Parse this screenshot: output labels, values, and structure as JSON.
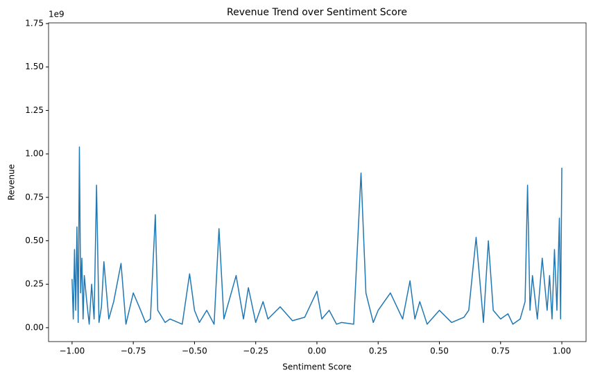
{
  "chart_data": {
    "type": "line",
    "title": "Revenue Trend over Sentiment Score",
    "x_label": "Sentiment Score",
    "y_label": "Revenue",
    "y_offset_label": "1e9",
    "xlim": [
      -1.096,
      1.099
    ],
    "ylim": [
      -0.08,
      1.754
    ],
    "xticks": [
      {
        "value": -1,
        "label": "−1.00"
      },
      {
        "value": -0.75,
        "label": "−0.75"
      },
      {
        "value": -0.5,
        "label": "−0.50"
      },
      {
        "value": -0.25,
        "label": "−0.25"
      },
      {
        "value": 0,
        "label": "0.00"
      },
      {
        "value": 0.25,
        "label": "0.25"
      },
      {
        "value": 0.5,
        "label": "0.50"
      },
      {
        "value": 0.75,
        "label": "0.75"
      },
      {
        "value": 1,
        "label": "1.00"
      }
    ],
    "yticks": [
      {
        "value": 0,
        "label": "0.00"
      },
      0.25,
      {
        "value": 0.5,
        "label": "0.50"
      },
      0.75,
      {
        "value": 1,
        "label": "1.00"
      },
      1.25,
      {
        "value": 1.5,
        "label": "1.50"
      },
      1.75
    ],
    "x": [
      -1.0,
      -0.995,
      -0.99,
      -0.985,
      -0.98,
      -0.975,
      -0.97,
      -0.965,
      -0.96,
      -0.955,
      -0.95,
      -0.94,
      -0.93,
      -0.92,
      -0.91,
      -0.9,
      -0.89,
      -0.88,
      -0.87,
      -0.85,
      -0.83,
      -0.8,
      -0.78,
      -0.75,
      -0.72,
      -0.7,
      -0.68,
      -0.66,
      -0.65,
      -0.62,
      -0.6,
      -0.55,
      -0.52,
      -0.5,
      -0.48,
      -0.45,
      -0.42,
      -0.4,
      -0.38,
      -0.35,
      -0.33,
      -0.3,
      -0.28,
      -0.25,
      -0.22,
      -0.2,
      -0.15,
      -0.1,
      -0.05,
      0.0,
      0.02,
      0.05,
      0.08,
      0.1,
      0.15,
      0.18,
      0.2,
      0.23,
      0.25,
      0.3,
      0.35,
      0.38,
      0.4,
      0.42,
      0.45,
      0.5,
      0.55,
      0.6,
      0.62,
      0.65,
      0.68,
      0.7,
      0.72,
      0.75,
      0.78,
      0.8,
      0.83,
      0.85,
      0.86,
      0.87,
      0.88,
      0.9,
      0.92,
      0.94,
      0.95,
      0.96,
      0.97,
      0.98,
      0.99,
      0.995,
      1.0
    ],
    "series": [
      {
        "color": "#1f77b4",
        "values": [
          0.28,
          0.05,
          0.45,
          0.1,
          0.58,
          0.03,
          1.04,
          0.2,
          0.4,
          0.05,
          0.3,
          0.15,
          0.02,
          0.25,
          0.05,
          0.82,
          0.03,
          0.12,
          0.38,
          0.05,
          0.15,
          0.37,
          0.02,
          0.2,
          0.1,
          0.03,
          0.05,
          0.65,
          0.1,
          0.03,
          0.05,
          0.02,
          0.31,
          0.1,
          0.03,
          0.1,
          0.02,
          0.57,
          0.05,
          0.2,
          0.3,
          0.05,
          0.23,
          0.03,
          0.15,
          0.05,
          0.12,
          0.04,
          0.06,
          0.21,
          0.05,
          0.1,
          0.02,
          0.03,
          0.02,
          0.89,
          0.2,
          0.03,
          0.1,
          0.2,
          0.05,
          0.27,
          0.05,
          0.15,
          0.02,
          0.1,
          0.03,
          0.06,
          0.1,
          0.52,
          0.03,
          0.5,
          0.1,
          0.05,
          0.08,
          0.02,
          0.05,
          0.15,
          0.82,
          0.1,
          0.3,
          0.05,
          0.4,
          0.1,
          0.3,
          0.05,
          0.45,
          0.1,
          0.63,
          0.05,
          0.92
        ]
      }
    ]
  }
}
